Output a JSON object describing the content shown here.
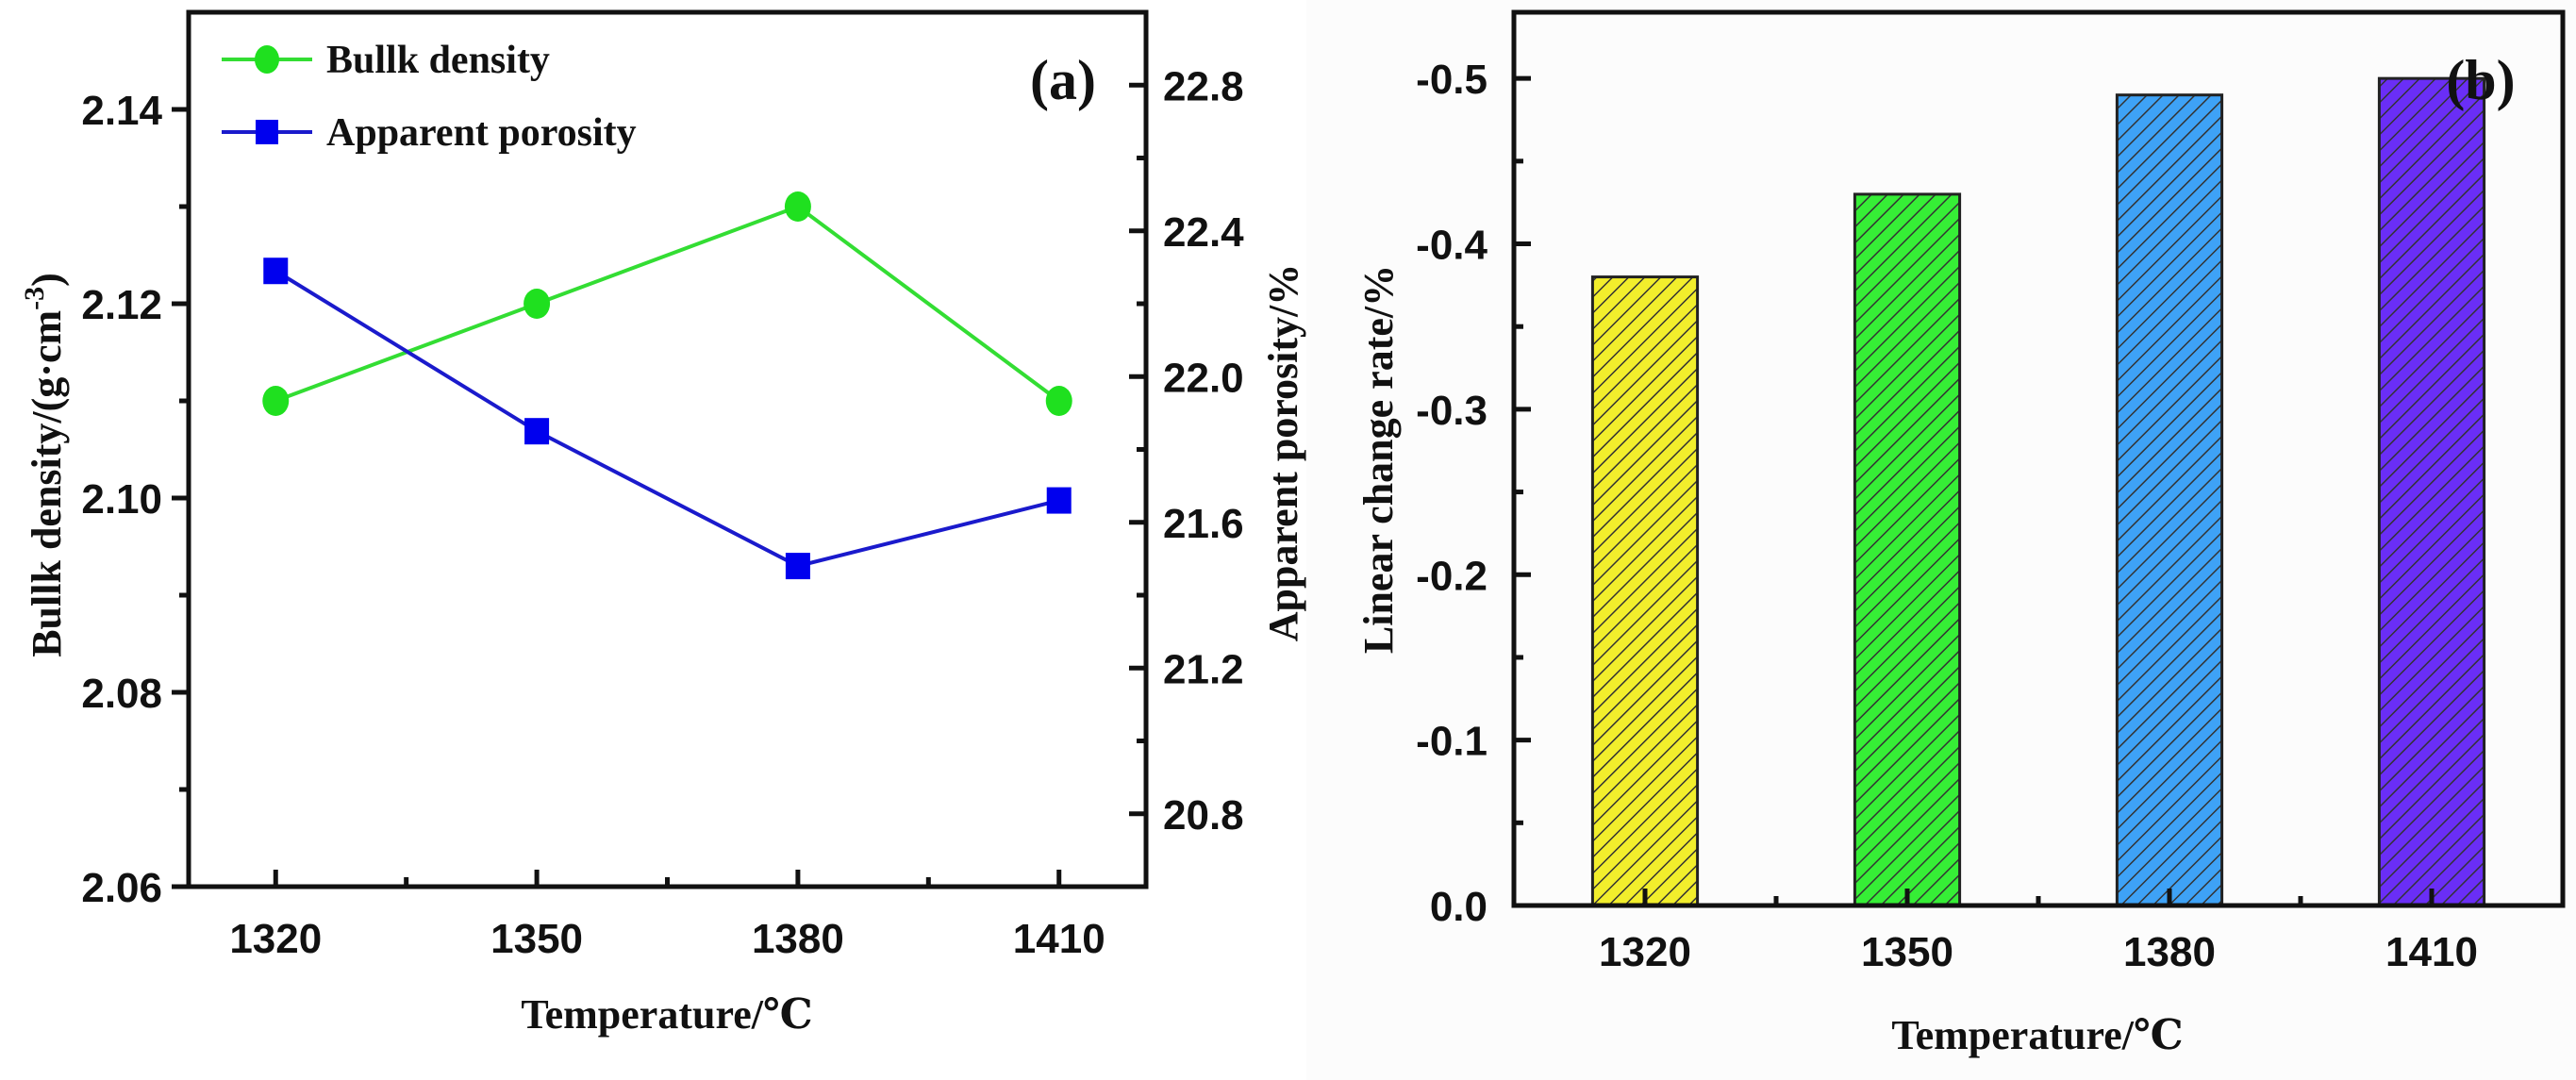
{
  "chart_data": [
    {
      "type": "line",
      "panel_label": "(a)",
      "xlabel": "Temperature/℃",
      "x": [
        1320,
        1350,
        1380,
        1410
      ],
      "xlim": [
        1310,
        1420
      ],
      "x_ticks": [
        "1320",
        "1350",
        "1380",
        "1410"
      ],
      "grid": false,
      "legend_position": "top-left",
      "left_axis": {
        "label": "Bullk density/(g·cm",
        "label_sup": "-3",
        "label_tail": ")",
        "ylim": [
          2.06,
          2.15
        ],
        "ticks": [
          "2.06",
          "2.08",
          "2.10",
          "2.12",
          "2.14"
        ]
      },
      "right_axis": {
        "label": "Apparent porosity/%",
        "ylim": [
          20.6,
          23.0
        ],
        "ticks": [
          "20.8",
          "21.2",
          "21.6",
          "22.0",
          "22.4",
          "22.8"
        ]
      },
      "series": [
        {
          "name": "Bullk density",
          "axis": "left",
          "marker": "circle",
          "color": "#1fe01f",
          "line_color": "#33dd33",
          "values": [
            2.11,
            2.12,
            2.13,
            2.11
          ]
        },
        {
          "name": "Apparent porosity",
          "axis": "right",
          "marker": "square",
          "color": "#0000ee",
          "line_color": "#1a1acc",
          "values": [
            22.29,
            21.85,
            21.48,
            21.66
          ]
        }
      ]
    },
    {
      "type": "bar",
      "panel_label": "(b)",
      "xlabel": "Temperature/℃",
      "ylabel": "Linear change rate/%",
      "categories": [
        "1320",
        "1350",
        "1380",
        "1410"
      ],
      "x": [
        1320,
        1350,
        1380,
        1410
      ],
      "xlim": [
        1305,
        1425
      ],
      "values": [
        -0.38,
        -0.43,
        -0.49,
        -0.5
      ],
      "ylim": [
        0,
        -0.54
      ],
      "y_inverted": true,
      "y_ticks": [
        "0.0",
        "-0.1",
        "-0.2",
        "-0.3",
        "-0.4",
        "-0.5"
      ],
      "grid": false,
      "fill_pattern": "diagonal-hatch",
      "colors": [
        "#f2ee2c",
        "#36ee36",
        "#3ea2f6",
        "#6a2ef6"
      ]
    }
  ]
}
